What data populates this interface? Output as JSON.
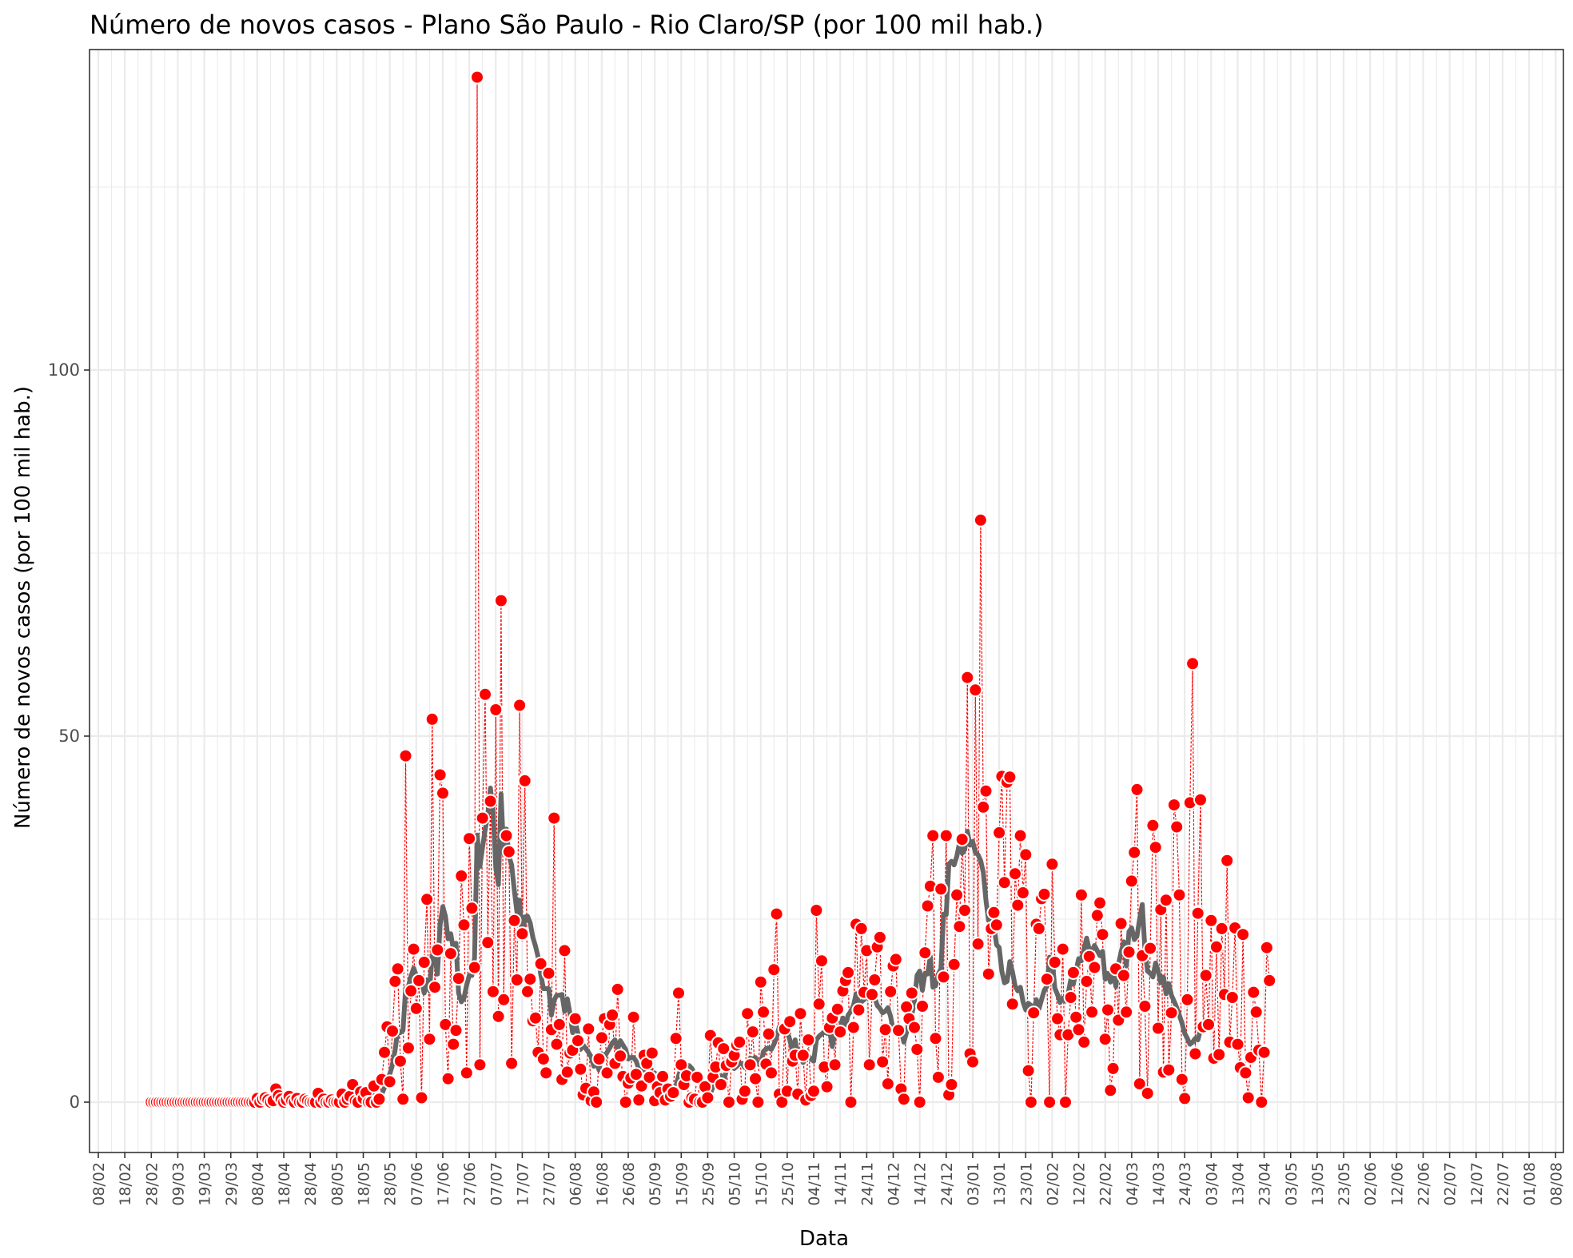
{
  "chart_data": {
    "type": "line",
    "title": "Número de novos casos - Plano São Paulo - Rio Claro/SP (por 100 mil hab.)",
    "xlabel": "Data",
    "ylabel": "Número de novos casos (por 100 mil hab.)",
    "ylim": [
      -6.5,
      143.5
    ],
    "yticks": [
      0,
      50,
      100
    ],
    "x_tick_labels": [
      "08/02",
      "18/02",
      "28/02",
      "09/03",
      "19/03",
      "29/03",
      "08/04",
      "18/04",
      "28/04",
      "08/05",
      "18/05",
      "28/05",
      "07/06",
      "17/06",
      "27/06",
      "07/07",
      "17/07",
      "27/07",
      "06/08",
      "16/08",
      "26/08",
      "05/09",
      "15/09",
      "25/09",
      "05/10",
      "15/10",
      "25/10",
      "04/11",
      "14/11",
      "24/11",
      "04/12",
      "14/12",
      "24/12",
      "03/01",
      "13/01",
      "23/01",
      "02/02",
      "12/02",
      "22/02",
      "04/03",
      "14/03",
      "24/03",
      "03/04",
      "13/04",
      "23/04",
      "03/05",
      "13/05",
      "23/05",
      "02/06",
      "12/06",
      "22/06",
      "02/07",
      "12/07",
      "22/07",
      "01/08",
      "08/08"
    ],
    "grid": true,
    "legend": "none",
    "colors": {
      "points": "#ff0000",
      "connector": "#ff0000",
      "moving_average": "#666666",
      "grid": "#ebebeb",
      "panel_border": "#333333"
    },
    "series": [
      {
        "kind": "daily",
        "x_start": "2020-02-28",
        "values": [
          0,
          0,
          0,
          0,
          0,
          0,
          0,
          0,
          0,
          0,
          0,
          0,
          0,
          0,
          0,
          0,
          0,
          0,
          0,
          0,
          0,
          0,
          0,
          0,
          0,
          0,
          0,
          0,
          0,
          0,
          0,
          0,
          0,
          0,
          0,
          0,
          0,
          0,
          0,
          0,
          0.5,
          0,
          0.4,
          0.6,
          0.3,
          0,
          0.2,
          1.8,
          0.9,
          0.4,
          0,
          0.3,
          0.8,
          0.2,
          0,
          0.5,
          0,
          0,
          0.4,
          0.2,
          0,
          0,
          0,
          1.2,
          0,
          0.4,
          0,
          0,
          0.3,
          0,
          0,
          0,
          1.1,
          0,
          0.4,
          0.8,
          2.4,
          0.2,
          0,
          1.4,
          0.5,
          1.3,
          0,
          0,
          2.2,
          0,
          0.4,
          3.1,
          6.8,
          10.3,
          2.8,
          9.7,
          16.5,
          18.2,
          5.6,
          0.4,
          47.3,
          7.4,
          15.2,
          20.9,
          12.8,
          16.6,
          0.6,
          19.1,
          27.7,
          8.6,
          52.3,
          15.7,
          20.8,
          44.7,
          42.2,
          10.6,
          3.2,
          20.3,
          7.9,
          9.8,
          16.9,
          30.9,
          24.2,
          4.0,
          36.0,
          26.5,
          18.4,
          140.0,
          5.1,
          38.8,
          55.7,
          21.8,
          41.1,
          15.1,
          53.6,
          11.7,
          68.5,
          14.0,
          36.4,
          34.2,
          5.3,
          24.8,
          16.7,
          54.2,
          23.0,
          43.9,
          15.1,
          16.8,
          11.1,
          11.5,
          6.8,
          18.9,
          5.9,
          4.0,
          17.6,
          9.9,
          38.8,
          7.9,
          10.6,
          3.1,
          20.7,
          4.1,
          6.7,
          7.1,
          11.4,
          8.4,
          4.5,
          1.0,
          1.9,
          10.0,
          0.2,
          1.4,
          0,
          5.9,
          8.8,
          11.4,
          4.0,
          10.6,
          11.9,
          5.3,
          15.4,
          6.3,
          3.5,
          0,
          2.6,
          3.3,
          11.6,
          3.8,
          0.3,
          2.2,
          6.4,
          5.3,
          3.4,
          6.7,
          0.2,
          2.1,
          1.3,
          3.5,
          0.3,
          1.8,
          0.8,
          1.3,
          8.7,
          14.9,
          5.1,
          2.4,
          3.6,
          0,
          0.6,
          0.4,
          3.4,
          0,
          0,
          2.1,
          0.6,
          9.1,
          3.4,
          4.8,
          8.1,
          2.4,
          7.3,
          5.0,
          0,
          5.5,
          6.4,
          7.8,
          8.2,
          0.4,
          1.5,
          12.1,
          5.1,
          9.6,
          3.2,
          0,
          16.4,
          12.3,
          5.2,
          9.3,
          4.0,
          18.1,
          25.7,
          1.1,
          0,
          10.0,
          1.5,
          11.0,
          5.6,
          6.4,
          1.1,
          12.1,
          6.4,
          0.3,
          8.5,
          0.9,
          1.5,
          26.2,
          13.4,
          19.3,
          4.8,
          2.1,
          10.2,
          11.5,
          5.1,
          12.7,
          9.6,
          15.2,
          16.6,
          17.7,
          0,
          10.2,
          24.3,
          12.6,
          23.7,
          15.0,
          20.7,
          5.1,
          14.7,
          16.7,
          21.2,
          22.5,
          5.5,
          9.9,
          2.5,
          15.1,
          18.6,
          19.5,
          9.8,
          1.8,
          0.4,
          13.0,
          11.4,
          14.9,
          10.2,
          7.2,
          0,
          13.1,
          20.4,
          26.8,
          29.5,
          36.4,
          8.7,
          3.4,
          29.1,
          17.1,
          36.4,
          1.0,
          2.4,
          18.8,
          28.3,
          24.0,
          35.9,
          26.2,
          58.0,
          6.6,
          5.5,
          56.3,
          21.6,
          79.5,
          40.3,
          42.5,
          17.5,
          23.7,
          25.9,
          24.2,
          36.8,
          44.5,
          30.0,
          43.7,
          44.4,
          13.4,
          31.2,
          26.9,
          36.4,
          28.6,
          33.8,
          4.3,
          0,
          12.2,
          24.3,
          23.7,
          27.8,
          28.4,
          16.8,
          0,
          32.5,
          19.1,
          11.4,
          9.2,
          20.9,
          0,
          9.2,
          14.3,
          17.7,
          11.6,
          9.9,
          28.3,
          8.2,
          16.5,
          19.9,
          12.3,
          18.4,
          25.5,
          27.2,
          22.9,
          8.6,
          12.6,
          1.6,
          4.6,
          18.2,
          11.2,
          24.4,
          17.3,
          12.3,
          20.5,
          30.2,
          34.1,
          42.7,
          2.5,
          20.0,
          13.1,
          1.2,
          21.0,
          37.8,
          34.8,
          10.1,
          26.3,
          4.1,
          27.6,
          4.4,
          12.2,
          40.6,
          37.6,
          28.3,
          3.1,
          0.5,
          14.0,
          40.9,
          59.9,
          6.6,
          25.8,
          41.3,
          10.3,
          17.3,
          10.6,
          24.8,
          6.0,
          21.2,
          6.5,
          23.7,
          14.7,
          33.0,
          8.2,
          14.3,
          23.8,
          7.9,
          4.7,
          22.9,
          4.0,
          0.6,
          6.1,
          15.0,
          12.3,
          7.1,
          0,
          6.8,
          21.1,
          16.6
        ]
      },
      {
        "kind": "moving_average_7d",
        "x_start": "2020-02-28",
        "values": [
          0,
          0,
          0,
          0,
          0,
          0,
          0,
          0,
          0,
          0,
          0,
          0,
          0,
          0,
          0,
          0,
          0,
          0,
          0,
          0,
          0,
          0,
          0,
          0,
          0,
          0,
          0,
          0,
          0,
          0,
          0,
          0,
          0,
          0,
          0,
          0,
          0,
          0,
          0,
          0,
          0.1,
          0.1,
          0.1,
          0.3,
          0.3,
          0.2,
          0.3,
          0.6,
          0.6,
          0.6,
          0.6,
          0.6,
          0.7,
          0.6,
          0.4,
          0.4,
          0.3,
          0.3,
          0.3,
          0.2,
          0.2,
          0.1,
          0.1,
          0.3,
          0.3,
          0.4,
          0.4,
          0.4,
          0.4,
          0.4,
          0.3,
          0.2,
          0.3,
          0.3,
          0.3,
          0.4,
          0.7,
          0.6,
          0.6,
          0.9,
          0.9,
          1.0,
          0.9,
          0.8,
          0.9,
          0.8,
          0.6,
          1.1,
          2.0,
          3.3,
          3.8,
          5.1,
          7.1,
          9.8,
          9.5,
          9.8,
          15.5,
          15.8,
          17.2,
          18.3,
          17.3,
          16.6,
          16.6,
          14.9,
          16.7,
          15.2,
          20.1,
          20.0,
          17.5,
          24.2,
          26.7,
          25.4,
          22.3,
          23.0,
          20.9,
          21.7,
          14.9,
          13.7,
          14.2,
          16.0,
          17.3,
          17.3,
          19.7,
          36.5,
          32.2,
          34.8,
          37.2,
          39.3,
          42.9,
          39.7,
          32.0,
          29.7,
          42.1,
          34.0,
          37.3,
          33.6,
          32.4,
          28.9,
          25.9,
          27.6,
          22.3,
          25.3,
          25.4,
          24.5,
          22.5,
          21.3,
          19.8,
          17.4,
          15.5,
          15.5,
          15.5,
          11.9,
          13.9,
          14.6,
          14.6,
          14.7,
          12.4,
          14.1,
          12.1,
          9.5,
          11.0,
          9.4,
          7.2,
          7.8,
          7.3,
          6.8,
          6.2,
          4.9,
          5.3,
          4.4,
          6.6,
          6.2,
          6.8,
          7.4,
          8.1,
          8.5,
          7.2,
          8.4,
          7.8,
          7.2,
          5.9,
          6.1,
          6.1,
          5.6,
          4.5,
          4.4,
          4.4,
          5.0,
          4.7,
          3.6,
          4.0,
          3.3,
          3.0,
          2.2,
          2.1,
          2.1,
          2.2,
          2.1,
          2.2,
          3.6,
          4.7,
          5.2,
          5.0,
          5.0,
          4.6,
          3.9,
          3.6,
          2.6,
          2.1,
          1.9,
          1.8,
          1.2,
          2.1,
          2.2,
          2.9,
          3.6,
          3.0,
          4.2,
          4.8,
          4.8,
          4.6,
          4.9,
          5.3,
          5.3,
          4.7,
          4.7,
          6.0,
          5.9,
          6.1,
          5.2,
          5.1,
          6.9,
          7.3,
          7.4,
          7.2,
          7.9,
          8.9,
          10.3,
          10.4,
          10.3,
          9.6,
          8.5,
          6.9,
          8.5,
          6.1,
          6.3,
          5.4,
          6.0,
          6.3,
          5.9,
          5.6,
          8.5,
          9.0,
          9.3,
          9.6,
          9.4,
          9.7,
          7.6,
          9.5,
          9.6,
          10.2,
          11.5,
          10.5,
          11.9,
          12.4,
          13.2,
          14.8,
          13.5,
          13.7,
          14.0,
          14.4,
          14.3,
          14.2,
          14.3,
          13.2,
          12.8,
          12.2,
          12.4,
          12.9,
          11.7,
          9.9,
          10.0,
          10.1,
          9.8,
          8.2,
          9.5,
          10.7,
          11.9,
          13.7,
          17.3,
          17.9,
          15.3,
          17.6,
          17.5,
          19.9,
          15.7,
          15.9,
          17.5,
          18.2,
          25.7,
          25.6,
          32.5,
          32.9,
          32.4,
          33.6,
          35.4,
          34.0,
          34.5,
          37.0,
          35.1,
          35.6,
          34.1,
          33.8,
          33.0,
          31.4,
          27.6,
          24.8,
          25.4,
          24.2,
          21.5,
          21.1,
          17.9,
          16.3,
          16.5,
          19.2,
          17.8,
          15.9,
          15.2,
          15.7,
          13.7,
          12.6,
          13.5,
          13.2,
          12.3,
          14.0,
          12.7,
          14.0,
          15.3,
          15.8,
          19.8,
          19.4,
          15.6,
          14.7,
          13.6,
          14.2,
          13.8,
          14.8,
          16.7,
          16.1,
          17.9,
          19.6,
          19.3,
          20.9,
          22.4,
          20.8,
          20.7,
          21.4,
          20.7,
          20.0,
          20.6,
          16.8,
          17.6,
          16.4,
          18.1,
          15.8,
          18.8,
          20.5,
          21.9,
          18.6,
          23.3,
          23.8,
          22.2,
          22.7,
          25.0,
          27.0,
          20.9,
          17.9,
          17.6,
          17.1,
          19.0,
          17.9,
          16.3,
          17.1,
          14.8,
          16.2,
          14.6,
          13.8,
          12.9,
          11.9,
          10.8,
          9.4,
          8.7,
          7.9,
          8.2,
          8.7,
          8.5,
          9.9,
          10.6
        ]
      }
    ]
  }
}
